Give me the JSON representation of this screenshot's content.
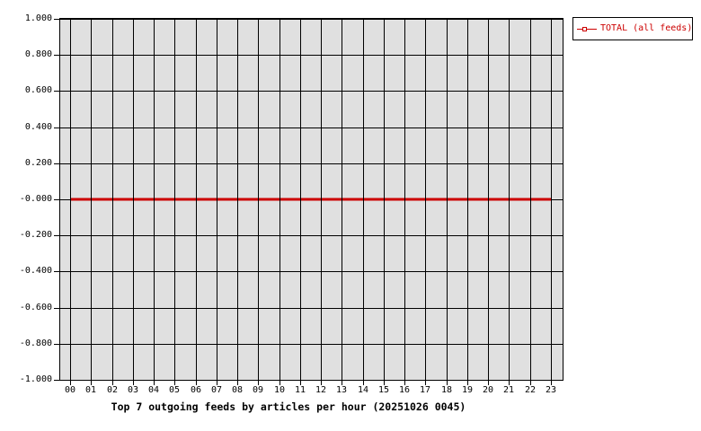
{
  "page": {
    "background": "#ffffff"
  },
  "chart_data": {
    "type": "line",
    "title": "Top 7 outgoing feeds by articles per hour (20251026 0045)",
    "xlabel": "",
    "ylabel": "",
    "categories": [
      "00",
      "01",
      "02",
      "03",
      "04",
      "05",
      "06",
      "07",
      "08",
      "09",
      "10",
      "11",
      "12",
      "13",
      "14",
      "15",
      "16",
      "17",
      "18",
      "19",
      "20",
      "21",
      "22",
      "23"
    ],
    "x_tick_labels": [
      "00",
      "01",
      "02",
      "03",
      "04",
      "05",
      "06",
      "07",
      "08",
      "09",
      "10",
      "11",
      "12",
      "13",
      "14",
      "15",
      "16",
      "17",
      "18",
      "19",
      "20",
      "21",
      "22",
      "23"
    ],
    "y_tick_labels": [
      "1.000",
      "0.800",
      "0.600",
      "0.400",
      "0.200",
      "-0.000",
      "-0.200",
      "-0.400",
      "-0.600",
      "-0.800",
      "-1.000"
    ],
    "ylim": [
      -1.0,
      1.0
    ],
    "grid": "on",
    "plot_background": "#e0e0e0",
    "grid_color": "#000000",
    "legend_position": "outside-top-right",
    "series": [
      {
        "name": "TOTAL (all feeds)",
        "color": "#cc0000",
        "marker": "open-square",
        "line_width": 3,
        "values": [
          0,
          0,
          0,
          0,
          0,
          0,
          0,
          0,
          0,
          0,
          0,
          0,
          0,
          0,
          0,
          0,
          0,
          0,
          0,
          0,
          0,
          0,
          0,
          0
        ]
      }
    ]
  },
  "legend": {
    "items": [
      {
        "label": "TOTAL (all feeds)",
        "color": "#cc0000"
      }
    ]
  }
}
